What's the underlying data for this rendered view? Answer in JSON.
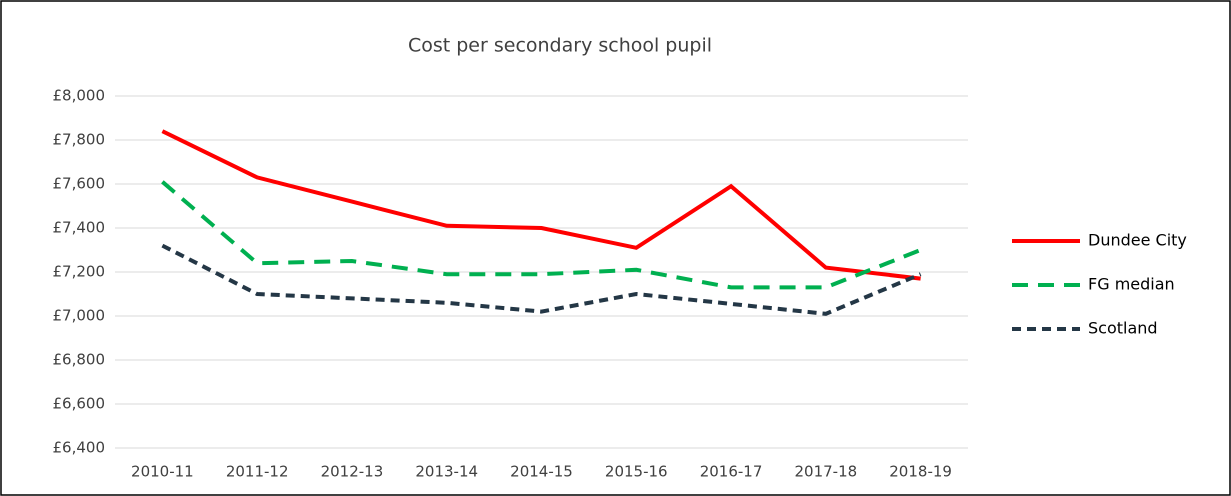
{
  "chart_data": {
    "type": "line",
    "title": "Cost per secondary school pupil",
    "categories": [
      "2010-11",
      "2011-12",
      "2012-13",
      "2013-14",
      "2014-15",
      "2015-16",
      "2016-17",
      "2017-18",
      "2018-19"
    ],
    "series": [
      {
        "name": "Dundee City",
        "color": "#ff0000",
        "dash": "solid",
        "values": [
          7840,
          7630,
          7520,
          7410,
          7400,
          7310,
          7590,
          7220,
          7170
        ]
      },
      {
        "name": "FG median",
        "color": "#00b050",
        "dash": "dashed",
        "values": [
          7610,
          7240,
          7250,
          7190,
          7190,
          7210,
          7130,
          7130,
          7300
        ]
      },
      {
        "name": "Scotland",
        "color": "#243746",
        "dash": "dashed",
        "values": [
          7320,
          7100,
          7080,
          7060,
          7020,
          7100,
          7055,
          7010,
          7190
        ]
      }
    ],
    "ylim": [
      6400,
      8000
    ],
    "yticks": [
      {
        "value": 6400,
        "label": "£6,400"
      },
      {
        "value": 6600,
        "label": "£6,600"
      },
      {
        "value": 6800,
        "label": "£6,800"
      },
      {
        "value": 7000,
        "label": "£7,000"
      },
      {
        "value": 7200,
        "label": "£7,200"
      },
      {
        "value": 7400,
        "label": "£7,400"
      },
      {
        "value": 7600,
        "label": "£7,600"
      },
      {
        "value": 7800,
        "label": "£7,800"
      },
      {
        "value": 8000,
        "label": "£8,000"
      }
    ],
    "grid": true,
    "legend": "right"
  }
}
